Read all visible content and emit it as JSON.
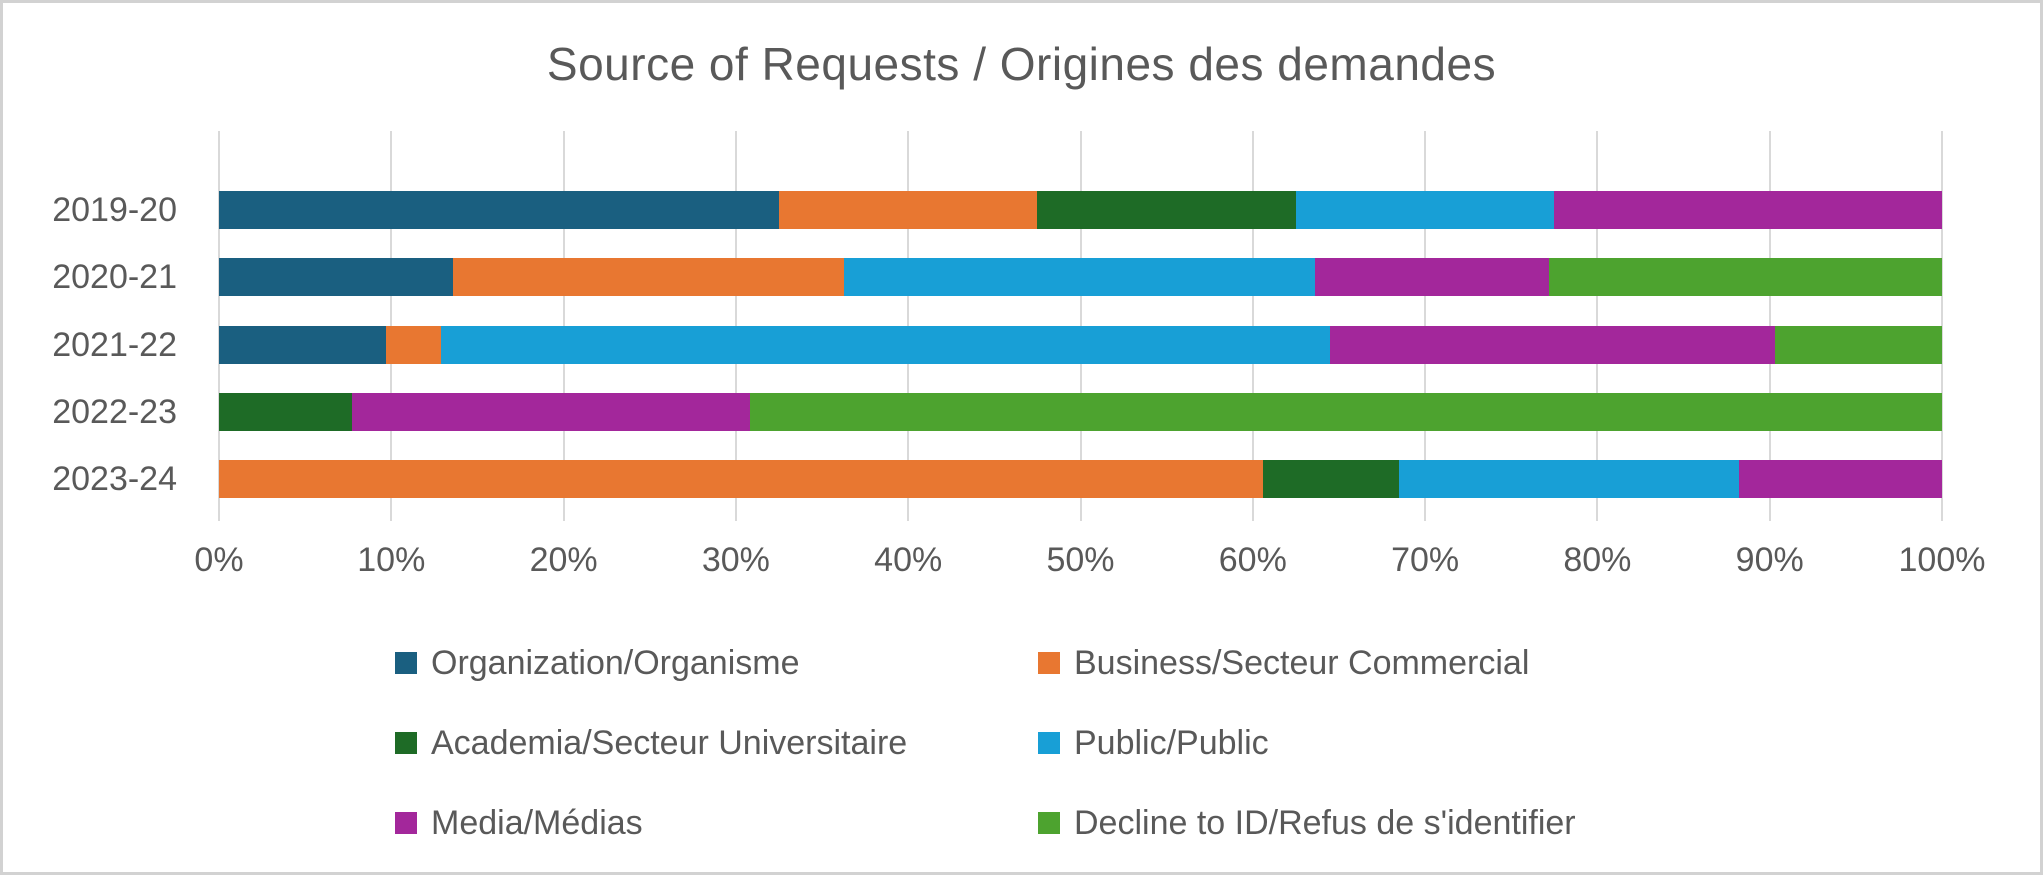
{
  "title": "Source of Requests / Origines des demandes",
  "colors": {
    "background": "#FFFFFF",
    "frame_border": "#D2D2D2",
    "text": "#595959",
    "gridline": "#D9D9D9"
  },
  "chart_data": {
    "type": "bar",
    "orientation": "horizontal",
    "stacked": true,
    "percent_stacked": true,
    "grid": true,
    "legend_position": "bottom",
    "title": "Source of Requests / Origines des demandes",
    "xlabel": "",
    "ylabel": "",
    "x_axis": {
      "min": 0,
      "max": 100,
      "ticks": [
        "0%",
        "10%",
        "20%",
        "30%",
        "40%",
        "50%",
        "60%",
        "70%",
        "80%",
        "90%",
        "100%"
      ]
    },
    "categories": [
      "2019-20",
      "2020-21",
      "2021-22",
      "2022-23",
      "2023-24"
    ],
    "series": [
      {
        "name": "Organization/Organisme",
        "color": "#1A5F80",
        "values": [
          32.5,
          13.6,
          9.7,
          0,
          0
        ]
      },
      {
        "name": "Business/Secteur Commercial",
        "color": "#E87731",
        "values": [
          15,
          22.7,
          3.2,
          0,
          60.6
        ]
      },
      {
        "name": "Academia/Secteur Universitaire",
        "color": "#1E6B26",
        "values": [
          15,
          0,
          0,
          7.7,
          7.9
        ]
      },
      {
        "name": "Public/Public",
        "color": "#189FD6",
        "values": [
          15,
          27.3,
          51.6,
          0,
          19.7
        ]
      },
      {
        "name": "Media/Médias",
        "color": "#A3279B",
        "values": [
          22.5,
          13.6,
          25.8,
          23.1,
          11.8
        ]
      },
      {
        "name": "Decline to ID/Refus de s'identifier",
        "color": "#4DA32F",
        "values": [
          0,
          22.7,
          9.7,
          69.2,
          0
        ]
      }
    ]
  }
}
